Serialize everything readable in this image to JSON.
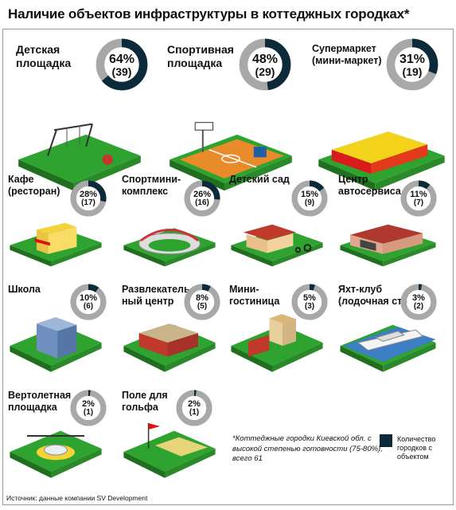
{
  "title": "Наличие объектов инфраструктуры в коттеджных городках*",
  "source": "Источник: данные компании SV Development",
  "note": "*Коттеджные городки Киевской обл. с высокой степенью готовности (75-80%), всего 61",
  "legend": "Количество городков с объектом",
  "colors": {
    "filled": "#0d2a3a",
    "empty": "#a8a8a8",
    "grass": "#2fa32f",
    "grass_edge": "#1f6f1f"
  },
  "chart_data": {
    "type": "pie",
    "title": "Наличие объектов инфраструктуры в коттеджных городках*",
    "total": 61,
    "items": [
      {
        "label": "Детская площадка",
        "percent": 64,
        "count": 39,
        "percent_label": "64%",
        "count_label": "(39)",
        "icon": "playground-icon"
      },
      {
        "label": "Спортивная площадка",
        "percent": 48,
        "count": 29,
        "percent_label": "48%",
        "count_label": "(29)",
        "icon": "basketball-court-icon"
      },
      {
        "label": "Супермаркет (мини-маркет)",
        "percent": 31,
        "count": 19,
        "percent_label": "31%",
        "count_label": "(19)",
        "icon": "supermarket-icon"
      },
      {
        "label": "Кафе (ресторан)",
        "percent": 28,
        "count": 17,
        "percent_label": "28%",
        "count_label": "(17)",
        "icon": "cafe-icon"
      },
      {
        "label": "Спортмини- комплекс",
        "percent": 26,
        "count": 16,
        "percent_label": "26%",
        "count_label": "(16)",
        "icon": "stadium-icon"
      },
      {
        "label": "Детский сад",
        "percent": 15,
        "count": 9,
        "percent_label": "15%",
        "count_label": "(9)",
        "icon": "kindergarten-icon"
      },
      {
        "label": "Центр автосервиса",
        "percent": 11,
        "count": 7,
        "percent_label": "11%",
        "count_label": "(7)",
        "icon": "car-service-icon"
      },
      {
        "label": "Школа",
        "percent": 10,
        "count": 6,
        "percent_label": "10%",
        "count_label": "(6)",
        "icon": "school-icon"
      },
      {
        "label": "Развлекатель- ный центр",
        "percent": 8,
        "count": 5,
        "percent_label": "8%",
        "count_label": "(5)",
        "icon": "entertainment-center-icon"
      },
      {
        "label": "Мини- гостиница",
        "percent": 5,
        "count": 3,
        "percent_label": "5%",
        "count_label": "(3)",
        "icon": "hotel-icon"
      },
      {
        "label": "Яхт-клуб (лодочная ст.)",
        "percent": 3,
        "count": 2,
        "percent_label": "3%",
        "count_label": "(2)",
        "icon": "yacht-icon"
      },
      {
        "label": "Вертолетная площадка",
        "percent": 2,
        "count": 1,
        "percent_label": "2%",
        "count_label": "(1)",
        "icon": "helipad-icon"
      },
      {
        "label": "Поле для гольфа",
        "percent": 2,
        "count": 1,
        "percent_label": "2%",
        "count_label": "(1)",
        "icon": "golf-field-icon"
      }
    ]
  }
}
